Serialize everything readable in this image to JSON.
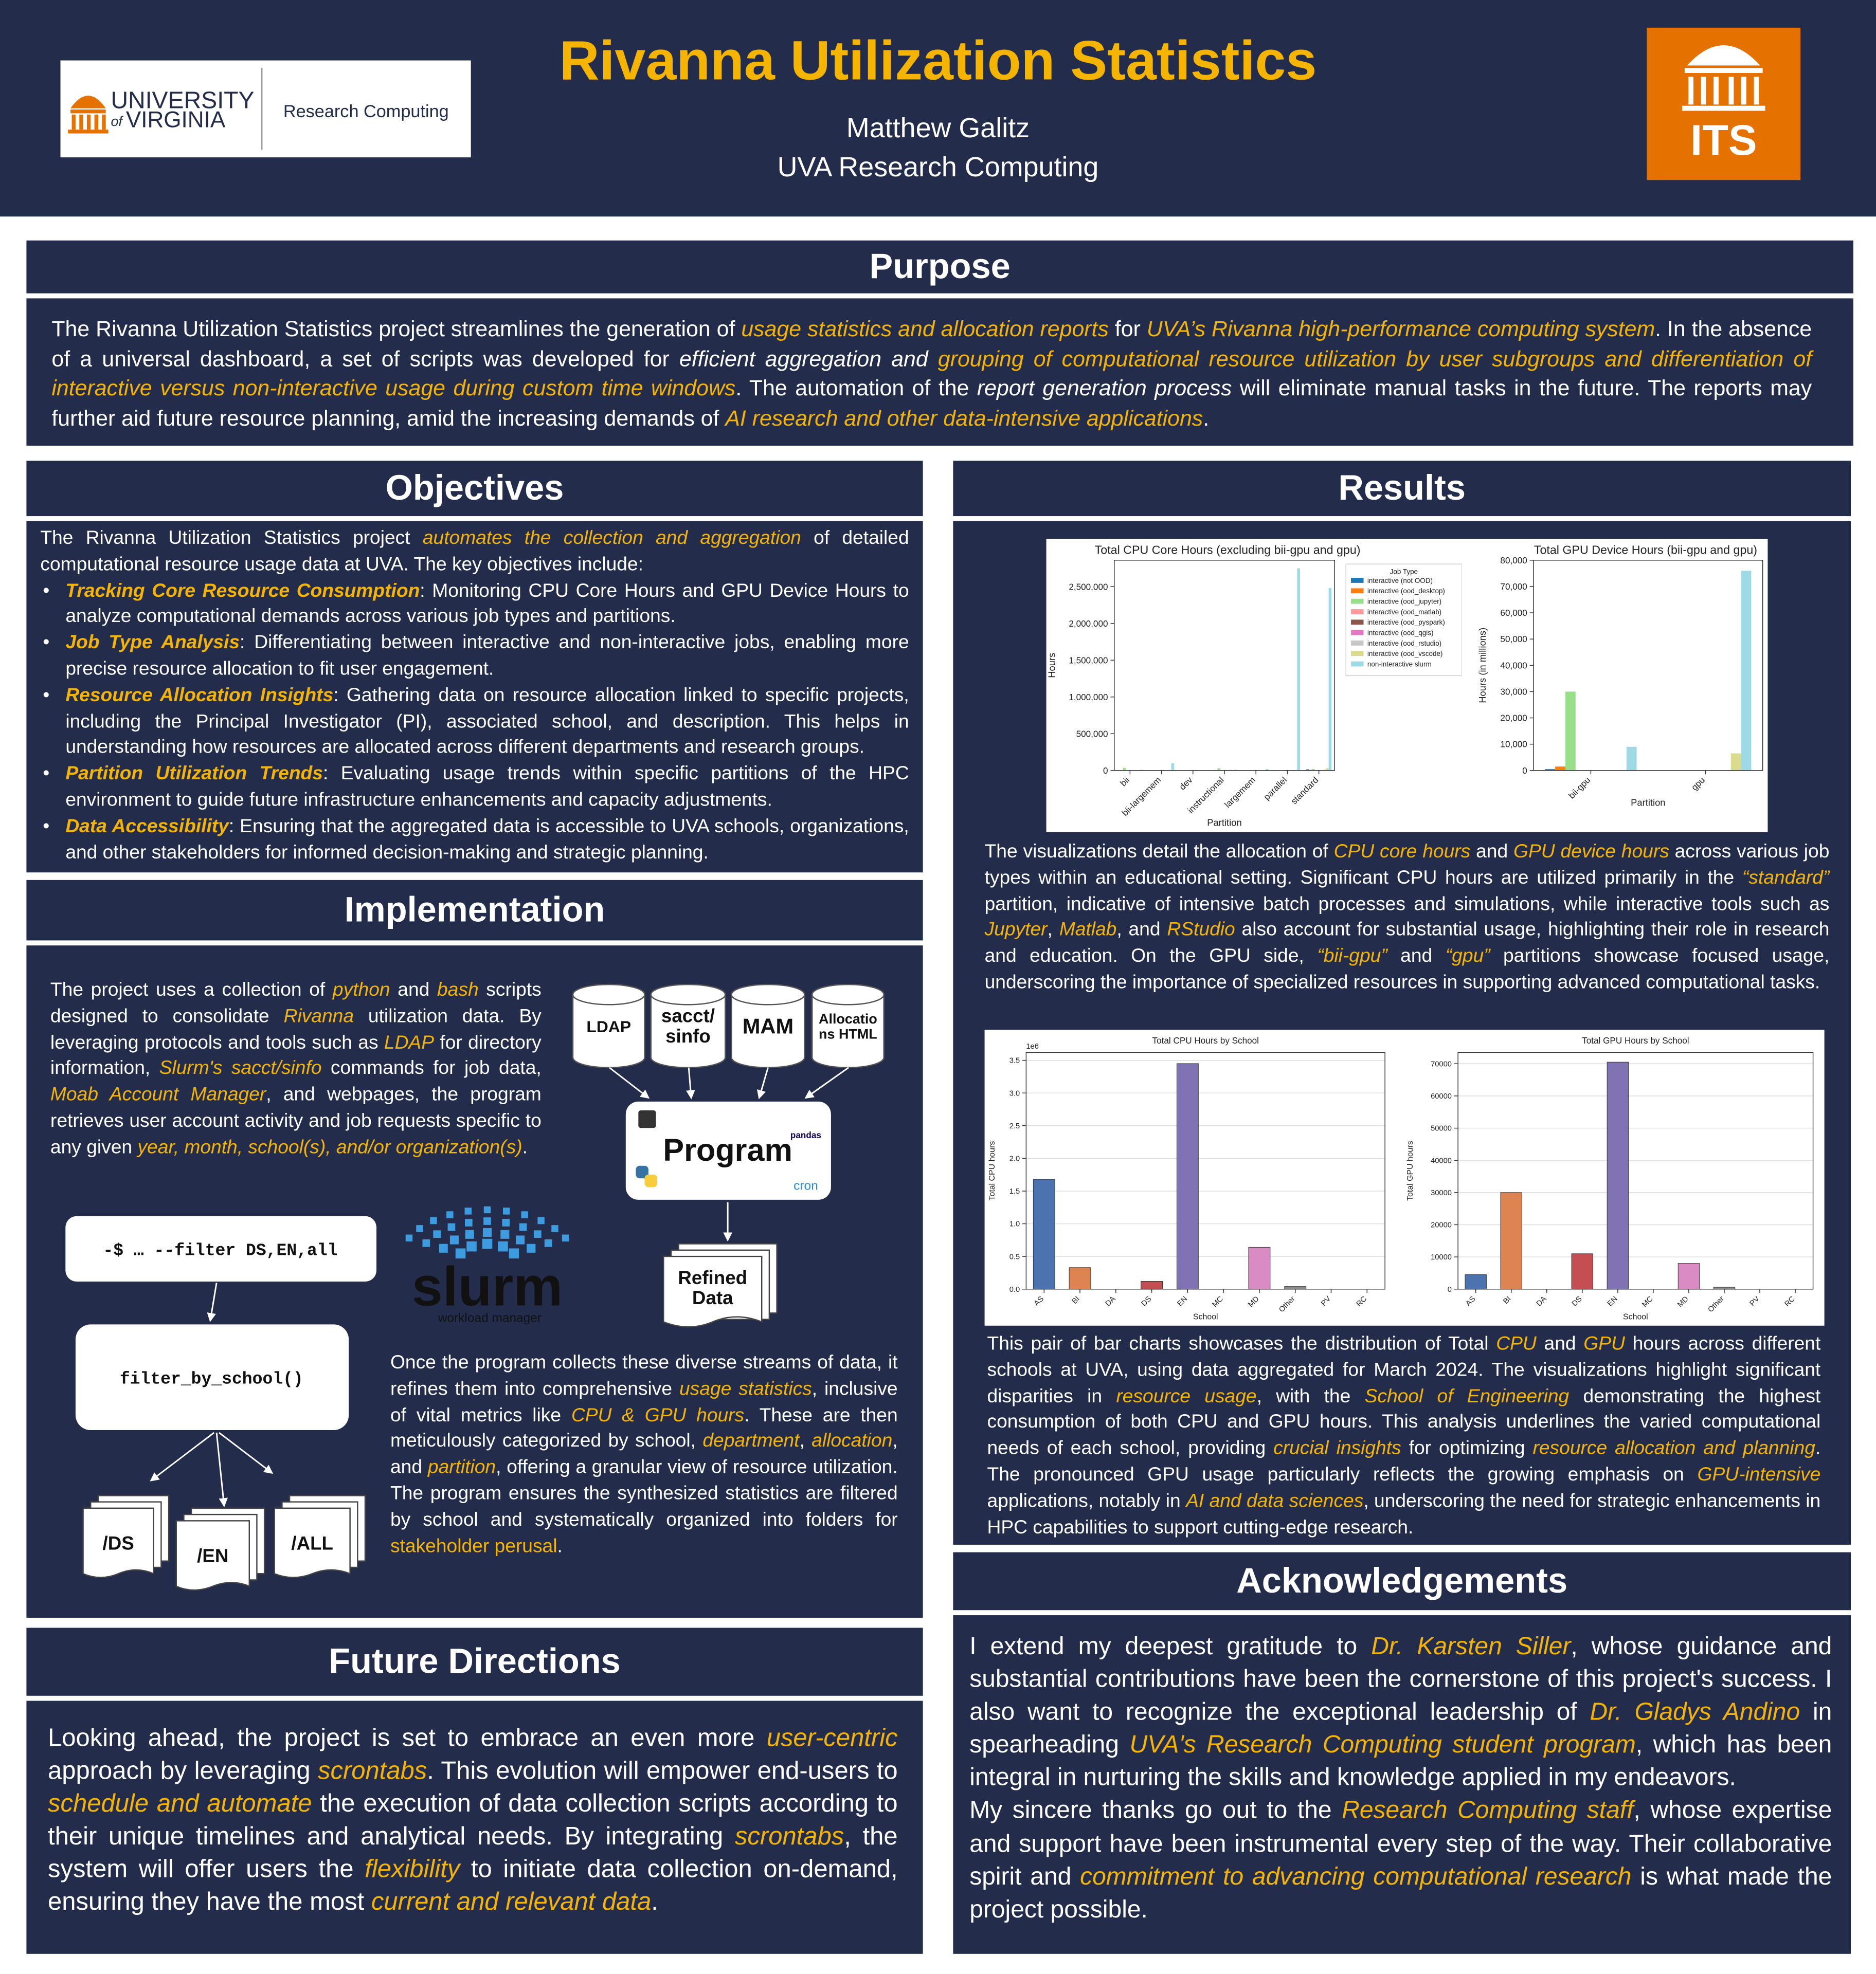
{
  "header": {
    "title": "Rivanna Utilization Statistics",
    "author": "Matthew Galitz",
    "affiliation": "UVA Research Computing",
    "logo": {
      "university": "UNIVERSITY",
      "of": "of",
      "virginia": "VIRGINIA",
      "unit": "Research Computing"
    },
    "its": "ITS"
  },
  "purpose": {
    "heading": "Purpose",
    "paragraph": [
      "The Rivanna Utilization Statistics project streamlines the generation of ",
      {
        "highlight": "usage statistics and allocation reports"
      },
      " for ",
      {
        "highlight": "UVA’s Rivanna high-performance computing system"
      },
      ". In the absence of a universal dashboard, a set of scripts was developed for ",
      {
        "italic": "efficient aggregation and "
      },
      {
        "highlight": "grouping of computational resource utilization by user subgroups and differentiation of interactive versus non-interactive usage during custom time windows"
      },
      ". The automation of the ",
      {
        "italic": "report generation process"
      },
      " will eliminate manual tasks in the future. The reports may further aid future resource planning, amid the increasing demands of ",
      {
        "highlight": "AI research and other data-intensive applications"
      },
      "."
    ]
  },
  "objectives": {
    "heading": "Objectives",
    "intro": [
      "The Rivanna Utilization Statistics project ",
      {
        "highlight": "automates the collection and aggregation"
      },
      " of detailed computational resource usage data at UVA. The key objectives include:"
    ],
    "bullets": [
      {
        "label": "Tracking Core Resource Consumption",
        "text": ": Monitoring CPU Core Hours and GPU Device Hours to analyze computational demands across various job types and partitions."
      },
      {
        "label": "Job Type Analysis",
        "text": ": Differentiating between interactive and non-interactive jobs, enabling more precise resource allocation to fit user engagement."
      },
      {
        "label": "Resource Allocation Insights",
        "text": ": Gathering data on resource allocation linked to specific projects, including the Principal Investigator (PI), associated school, and description. This helps in understanding how resources are allocated across different departments and research groups."
      },
      {
        "label": "Partition Utilization Trends",
        "text": ": Evaluating usage trends within specific partitions of the HPC environment to guide future infrastructure enhancements and capacity adjustments."
      },
      {
        "label": "Data Accessibility",
        "text": ": Ensuring that the aggregated data is accessible to UVA schools, organizations, and other stakeholders for informed decision-making and strategic planning."
      }
    ]
  },
  "implementation": {
    "heading": "Implementation",
    "paragraph1": [
      "The project uses a collection of ",
      {
        "highlight": "python"
      },
      " and ",
      {
        "highlight": "bash"
      },
      " scripts designed to consolidate ",
      {
        "highlight": "Rivanna"
      },
      " utilization data. By leveraging protocols and tools such as ",
      {
        "highlight": "LDAP"
      },
      " for directory information, ",
      {
        "highlight": "Slurm's sacct/sinfo"
      },
      " commands for job data, ",
      {
        "highlight": "Moab Account Manager"
      },
      ", and webpages, the program retrieves user account activity and job requests specific to any given ",
      {
        "highlight": "year, month, school(s), and/or organization(s)"
      },
      "."
    ],
    "paragraph2": [
      "Once the program collects these diverse streams of data, it refines them into comprehensive ",
      {
        "highlight": "usage statistics"
      },
      ", inclusive of vital metrics like ",
      {
        "highlight": "CPU & GPU hours"
      },
      ". These are then meticulously categorized by school, ",
      {
        "highlight": "department"
      },
      ", ",
      {
        "highlight": "allocation"
      },
      ", and ",
      {
        "highlight": "partition"
      },
      ", offering a granular view of resource utilization. The program ensures the synthesized statistics are filtered by school and systematically organized into folders for ",
      {
        "accent": "stakeholder perusal"
      },
      "."
    ],
    "diagram": {
      "sources": [
        "LDAP",
        "sacct/ sinfo",
        "MAM",
        "Allocations HTML"
      ],
      "program": "Program",
      "tools": [
        "pandas",
        "cron"
      ],
      "output": "Refined Data",
      "command": "-$ … --filter DS,EN,all",
      "function": "filter_by_school()",
      "folders": [
        "/DS",
        "/EN",
        "/ALL"
      ],
      "slurm": "slurm",
      "slurm_tagline": "workload manager"
    }
  },
  "future": {
    "heading": "Future Directions",
    "paragraph": [
      "Looking ahead, the project is set to embrace an even more ",
      {
        "highlight": "user-centric"
      },
      " approach by leveraging ",
      {
        "highlight": "scrontabs"
      },
      ". This evolution will empower end-users to ",
      {
        "highlight": "schedule and automate"
      },
      " the execution of data collection scripts according to their unique timelines and analytical needs. By integrating ",
      {
        "highlight": "scrontabs"
      },
      ", the system will offer users the ",
      {
        "highlight": "flexibility"
      },
      " to initiate data collection on-demand, ensuring they have the most ",
      {
        "highlight": "current and relevant data"
      },
      "."
    ]
  },
  "results": {
    "heading": "Results",
    "charts": [
      {
        "type": "bar",
        "title": "Total CPU Core Hours (excluding bii-gpu and gpu)",
        "x_label": "Partition",
        "y_label": "Hours",
        "xtick_rotation": 45,
        "grid": false,
        "legend": "upper right",
        "legend_title": "Job Type",
        "categories": [
          "bii",
          "bii-largemem",
          "dev",
          "instructional",
          "largemem",
          "parallel",
          "standard"
        ],
        "series": [
          {
            "name": "interactive (not OOD)",
            "color": "#1f77b4",
            "values": [
              3000,
              0,
              1000,
              2000,
              1000,
              0,
              15000
            ]
          },
          {
            "name": "interactive (ood_desktop)",
            "color": "#ff7f0e",
            "values": [
              1000,
              0,
              0,
              5000,
              0,
              0,
              8000
            ]
          },
          {
            "name": "interactive (ood_jupyter)",
            "color": "#98df8a",
            "values": [
              35000,
              0,
              0,
              30000,
              0,
              0,
              20000
            ]
          },
          {
            "name": "interactive (ood_matlab)",
            "color": "#ff9896",
            "values": [
              2000,
              0,
              0,
              3000,
              0,
              0,
              5000
            ]
          },
          {
            "name": "interactive (ood_pyspark)",
            "color": "#8c564b",
            "values": [
              0,
              0,
              0,
              0,
              0,
              0,
              0
            ]
          },
          {
            "name": "interactive (ood_qgis)",
            "color": "#e377c2",
            "values": [
              0,
              0,
              0,
              0,
              0,
              0,
              0
            ]
          },
          {
            "name": "interactive (ood_rstudio)",
            "color": "#c7c7c7",
            "values": [
              5000,
              0,
              0,
              8000,
              0,
              0,
              10000
            ]
          },
          {
            "name": "interactive (ood_vscode)",
            "color": "#dbdb8d",
            "values": [
              5000,
              0,
              0,
              2000,
              0,
              0,
              30000
            ]
          },
          {
            "name": "non-interactive slurm",
            "color": "#9edae5",
            "values": [
              10000,
              100000,
              0,
              10000,
              20000,
              2750000,
              2480000
            ]
          }
        ],
        "ylim": [
          0,
          2860000
        ],
        "yticks": [
          0,
          {
            "value": 500000,
            "label": "500,000"
          },
          {
            "value": 1000000,
            "label": "1,000,000"
          },
          {
            "value": 1500000,
            "label": "1,500,000"
          },
          {
            "value": 2000000,
            "label": "2,000,000"
          },
          {
            "value": 2500000,
            "label": "2,500,000"
          }
        ]
      },
      {
        "type": "bar",
        "title": "Total GPU Device Hours (bii-gpu and gpu)",
        "x_label": "Partition",
        "y_label": "Hours (in millions)",
        "xtick_rotation": 45,
        "grid": false,
        "categories": [
          "bii-gpu",
          "gpu"
        ],
        "series": [
          {
            "color": "#1f77b4",
            "values": [
              500,
              0
            ]
          },
          {
            "color": "#ff7f0e",
            "values": [
              1500,
              0
            ]
          },
          {
            "color": "#98df8a",
            "values": [
              30000,
              0
            ]
          },
          {
            "color": "#ff9896",
            "values": [
              0,
              0
            ]
          },
          {
            "color": "#8c564b",
            "values": [
              0,
              0
            ]
          },
          {
            "color": "#e377c2",
            "values": [
              0,
              0
            ]
          },
          {
            "color": "#c7c7c7",
            "values": [
              0,
              0
            ]
          },
          {
            "color": "#dbdb8d",
            "values": [
              0,
              6500
            ]
          },
          {
            "color": "#9edae5",
            "values": [
              9000,
              76000
            ]
          }
        ],
        "ylim": [
          0,
          80000
        ],
        "yticks": [
          0,
          {
            "value": 10000,
            "label": "10,000"
          },
          {
            "value": 20000,
            "label": "20,000"
          },
          {
            "value": 30000,
            "label": "30,000"
          },
          {
            "value": 40000,
            "label": "40,000"
          },
          {
            "value": 50000,
            "label": "50,000"
          },
          {
            "value": 60000,
            "label": "60,000"
          },
          {
            "value": 70000,
            "label": "70,000"
          },
          {
            "value": 80000,
            "label": "80,000"
          }
        ]
      },
      {
        "type": "bar",
        "title": "Total CPU Hours by School",
        "x_label": "School",
        "y_label": "Total CPU hours",
        "offset_label": "1e6",
        "xtick_rotation": 45,
        "grid": true,
        "categories": [
          "AS",
          "BI",
          "DA",
          "DS",
          "EN",
          "MC",
          "MD",
          "Other",
          "PV",
          "RC"
        ],
        "values": [
          1.68,
          0.33,
          0,
          0.12,
          3.45,
          0,
          0.64,
          0.04,
          0,
          0
        ],
        "colors": [
          "#4c72b0",
          "#dd8452",
          "#55a868",
          "#c44e52",
          "#8172b3",
          "#937860",
          "#da8bc3",
          "#8c8c8c",
          "#ccb974",
          "#64b5cd"
        ],
        "ylim": [
          0,
          3.62
        ],
        "yticks": [
          {
            "value": 0,
            "label": "0.0"
          },
          0.5,
          {
            "value": 1,
            "label": "1.0"
          },
          1.5,
          {
            "value": 2,
            "label": "2.0"
          },
          2.5,
          {
            "value": 3,
            "label": "3.0"
          },
          3.5
        ]
      },
      {
        "type": "bar",
        "title": "Total GPU Hours by School",
        "x_label": "School",
        "y_label": "Total GPU hours",
        "xtick_rotation": 45,
        "grid": true,
        "categories": [
          "AS",
          "BI",
          "DA",
          "DS",
          "EN",
          "MC",
          "MD",
          "Other",
          "PV",
          "RC"
        ],
        "values": [
          4500,
          30000,
          0,
          11000,
          70500,
          0,
          8000,
          600,
          0,
          0
        ],
        "colors": [
          "#4c72b0",
          "#dd8452",
          "#55a868",
          "#c44e52",
          "#8172b3",
          "#937860",
          "#da8bc3",
          "#8c8c8c",
          "#ccb974",
          "#64b5cd"
        ],
        "ylim": [
          0,
          73500
        ],
        "yticks": [
          0,
          10000,
          20000,
          30000,
          40000,
          50000,
          60000,
          70000
        ]
      }
    ],
    "paragraph1": [
      "The visualizations detail the allocation of ",
      {
        "highlight": "CPU core hours"
      },
      " and ",
      {
        "highlight": "GPU device hours"
      },
      " across various job types within an educational setting. Significant CPU hours are utilized primarily in the ",
      {
        "highlight": "“standard”"
      },
      " partition, indicative of intensive batch processes and simulations, while interactive tools such as ",
      {
        "highlight": "Jupyter"
      },
      ", ",
      {
        "highlight": "Matlab"
      },
      ", and ",
      {
        "highlight": "RStudio"
      },
      " also account for substantial usage, highlighting their role in research and education. On the GPU side, ",
      {
        "highlight": "“bii-gpu”"
      },
      " and ",
      {
        "highlight": "“gpu”"
      },
      " partitions showcase focused usage, underscoring the importance of specialized resources in supporting advanced computational tasks."
    ],
    "paragraph2": [
      "This pair of bar charts showcases the distribution of Total ",
      {
        "highlight": "CPU"
      },
      " and ",
      {
        "highlight": "GPU"
      },
      " hours across different schools at UVA, using data aggregated for March 2024. The visualizations highlight significant disparities in ",
      {
        "highlight": "resource usage"
      },
      ", with the ",
      {
        "highlight": "School of Engineering"
      },
      " demonstrating the highest consumption of both CPU and GPU hours. This analysis underlines the varied computational needs of each school, providing ",
      {
        "highlight": "crucial insights"
      },
      " for optimizing ",
      {
        "highlight": "resource allocation and planning"
      },
      ". The pronounced GPU usage particularly reflects the growing emphasis on ",
      {
        "highlight": "GPU-intensive"
      },
      " applications, notably in ",
      {
        "highlight": "AI and data sciences"
      },
      ", underscoring the need for strategic enhancements in HPC capabilities to support cutting-edge research."
    ]
  },
  "acknowledgements": {
    "heading": "Acknowledgements",
    "paragraphs": [
      [
        "I extend my deepest gratitude to ",
        {
          "highlight": "Dr. Karsten Siller"
        },
        ", whose guidance and substantial contributions have been the cornerstone of this project's success. I also want to recognize the exceptional leadership of ",
        {
          "highlight": "Dr. Gladys Andino"
        },
        " in spearheading ",
        {
          "highlight": "UVA's Research Computing student program"
        },
        ", which has been integral in nurturing the skills and knowledge applied in my endeavors."
      ],
      [
        "My sincere thanks go out to the ",
        {
          "highlight": "Research Computing staff"
        },
        ", whose expertise and support have been instrumental every step of the way. Their collaborative spirit and ",
        {
          "highlight": "commitment to advancing computational research"
        },
        " is what made the project possible."
      ]
    ]
  }
}
